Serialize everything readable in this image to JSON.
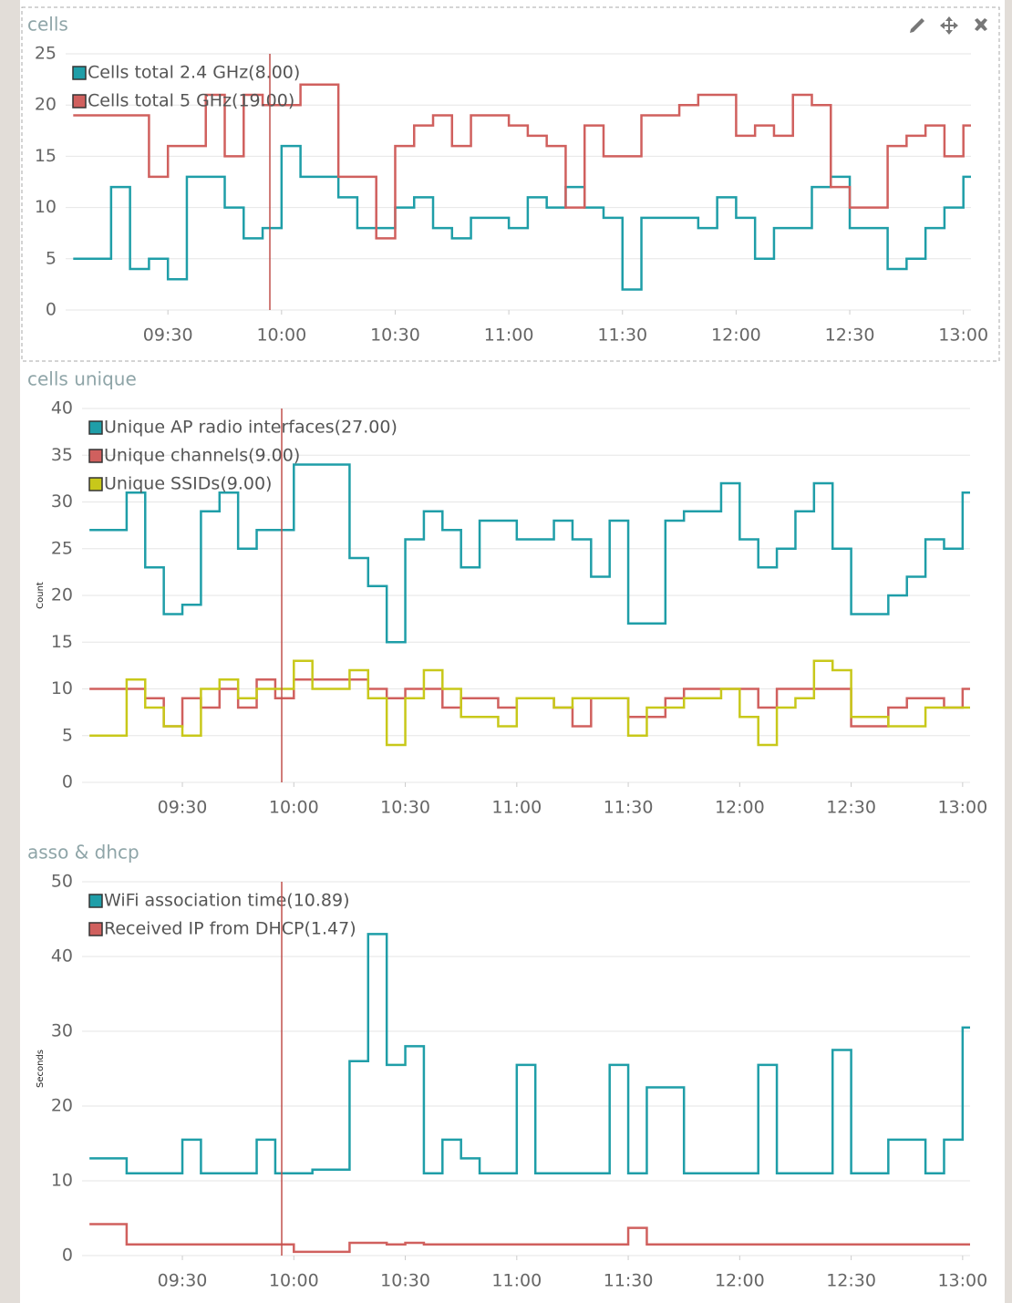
{
  "chart_data": [
    {
      "type": "line",
      "title": "cells",
      "x": [
        "09:05",
        "09:10",
        "09:15",
        "09:20",
        "09:25",
        "09:30",
        "09:35",
        "09:40",
        "09:45",
        "09:50",
        "09:55",
        "10:00",
        "10:05",
        "10:10",
        "10:15",
        "10:20",
        "10:25",
        "10:30",
        "10:35",
        "10:40",
        "10:45",
        "10:50",
        "10:55",
        "11:00",
        "11:05",
        "11:10",
        "11:15",
        "11:20",
        "11:25",
        "11:30",
        "11:35",
        "11:40",
        "11:45",
        "11:50",
        "11:55",
        "12:00",
        "12:05",
        "12:10",
        "12:15",
        "12:20",
        "12:25",
        "12:30",
        "12:35",
        "12:40",
        "12:45",
        "12:50",
        "12:55",
        "13:00"
      ],
      "series": [
        {
          "name": "Cells total 2.4 GHz(8.00)",
          "color": "#1f9ea8",
          "values": [
            5,
            5,
            12,
            4,
            5,
            3,
            13,
            13,
            10,
            7,
            8,
            16,
            13,
            13,
            11,
            8,
            8,
            10,
            11,
            8,
            7,
            9,
            9,
            8,
            11,
            10,
            12,
            10,
            9,
            2,
            9,
            9,
            9,
            8,
            11,
            9,
            5,
            8,
            8,
            12,
            13,
            8,
            8,
            4,
            5,
            8,
            10,
            13
          ]
        },
        {
          "name": "Cells total 5 GHz(19.00)",
          "color": "#d0605e",
          "values": [
            19,
            19,
            19,
            19,
            13,
            16,
            16,
            21,
            15,
            21,
            20,
            20,
            22,
            22,
            13,
            13,
            7,
            16,
            18,
            19,
            16,
            19,
            19,
            18,
            17,
            16,
            10,
            18,
            15,
            15,
            19,
            19,
            20,
            21,
            21,
            17,
            18,
            17,
            21,
            20,
            12,
            10,
            10,
            16,
            17,
            18,
            15,
            18
          ]
        }
      ],
      "xlim": [
        "09:03",
        "13:02"
      ],
      "xticks": [
        "09:30",
        "10:00",
        "10:30",
        "11:00",
        "11:30",
        "12:00",
        "12:30",
        "13:00"
      ],
      "ylim": [
        0,
        25
      ],
      "yticks": [
        0,
        5,
        10,
        15,
        20,
        25
      ],
      "grid": true,
      "step": true,
      "legend": "top-left"
    },
    {
      "type": "line",
      "title": "cells unique",
      "ylabel": "Count",
      "x": [
        "09:05",
        "09:10",
        "09:15",
        "09:20",
        "09:25",
        "09:30",
        "09:35",
        "09:40",
        "09:45",
        "09:50",
        "09:55",
        "10:00",
        "10:05",
        "10:10",
        "10:15",
        "10:20",
        "10:25",
        "10:30",
        "10:35",
        "10:40",
        "10:45",
        "10:50",
        "10:55",
        "11:00",
        "11:05",
        "11:10",
        "11:15",
        "11:20",
        "11:25",
        "11:30",
        "11:35",
        "11:40",
        "11:45",
        "11:50",
        "11:55",
        "12:00",
        "12:05",
        "12:10",
        "12:15",
        "12:20",
        "12:25",
        "12:30",
        "12:35",
        "12:40",
        "12:45",
        "12:50",
        "12:55",
        "13:00"
      ],
      "series": [
        {
          "name": "Unique AP radio interfaces(27.00)",
          "color": "#1f9ea8",
          "values": [
            27,
            27,
            31,
            23,
            18,
            19,
            29,
            31,
            25,
            27,
            27,
            34,
            34,
            34,
            24,
            21,
            15,
            26,
            29,
            27,
            23,
            28,
            28,
            26,
            26,
            28,
            26,
            22,
            28,
            17,
            17,
            28,
            29,
            29,
            32,
            26,
            23,
            25,
            29,
            32,
            25,
            18,
            18,
            20,
            22,
            26,
            25,
            31
          ]
        },
        {
          "name": "Unique channels(9.00)",
          "color": "#d0605e",
          "values": [
            10,
            10,
            10,
            9,
            6,
            9,
            8,
            10,
            8,
            11,
            9,
            11,
            11,
            11,
            11,
            10,
            9,
            10,
            10,
            8,
            9,
            9,
            8,
            9,
            9,
            8,
            6,
            9,
            9,
            7,
            7,
            9,
            10,
            10,
            10,
            10,
            8,
            10,
            10,
            10,
            10,
            6,
            6,
            8,
            9,
            9,
            8,
            10
          ]
        },
        {
          "name": "Unique SSIDs(9.00)",
          "color": "#c8c81a",
          "values": [
            5,
            5,
            11,
            8,
            6,
            5,
            10,
            11,
            9,
            10,
            10,
            13,
            10,
            10,
            12,
            9,
            4,
            9,
            12,
            10,
            7,
            7,
            6,
            9,
            9,
            8,
            9,
            9,
            9,
            5,
            8,
            8,
            9,
            9,
            10,
            7,
            4,
            8,
            9,
            13,
            12,
            7,
            7,
            6,
            6,
            8,
            8,
            8
          ]
        }
      ],
      "xlim": [
        "09:03",
        "13:02"
      ],
      "xticks": [
        "09:30",
        "10:00",
        "10:30",
        "11:00",
        "11:30",
        "12:00",
        "12:30",
        "13:00"
      ],
      "ylim": [
        0,
        40
      ],
      "yticks": [
        0,
        5,
        10,
        15,
        20,
        25,
        30,
        35,
        40
      ],
      "grid": true,
      "step": true,
      "legend": "top-left"
    },
    {
      "type": "line",
      "title": "asso & dhcp",
      "ylabel": "Seconds",
      "x": [
        "09:05",
        "09:10",
        "09:15",
        "09:20",
        "09:25",
        "09:30",
        "09:35",
        "09:40",
        "09:45",
        "09:50",
        "09:55",
        "10:00",
        "10:05",
        "10:10",
        "10:15",
        "10:20",
        "10:25",
        "10:30",
        "10:35",
        "10:40",
        "10:45",
        "10:50",
        "10:55",
        "11:00",
        "11:05",
        "11:10",
        "11:15",
        "11:20",
        "11:25",
        "11:30",
        "11:35",
        "11:40",
        "11:45",
        "11:50",
        "11:55",
        "12:00",
        "12:05",
        "12:10",
        "12:15",
        "12:20",
        "12:25",
        "12:30",
        "12:35",
        "12:40",
        "12:45",
        "12:50",
        "12:55",
        "13:00"
      ],
      "series": [
        {
          "name": "WiFi association time(10.89)",
          "color": "#1f9ea8",
          "values": [
            13,
            13,
            11,
            11,
            11,
            15.5,
            11,
            11,
            11,
            15.5,
            11,
            11,
            11.5,
            11.5,
            26,
            43,
            25.5,
            28,
            11,
            15.5,
            13,
            11,
            11,
            25.5,
            11,
            11,
            11,
            11,
            25.5,
            11,
            22.5,
            22.5,
            11,
            11,
            11,
            11,
            25.5,
            11,
            11,
            11,
            27.5,
            11,
            11,
            15.5,
            15.5,
            11,
            15.5,
            30.5
          ]
        },
        {
          "name": "Received IP from DHCP(1.47)",
          "color": "#d0605e",
          "values": [
            4.2,
            4.2,
            1.5,
            1.5,
            1.5,
            1.5,
            1.5,
            1.5,
            1.5,
            1.5,
            1.5,
            0.5,
            0.5,
            0.5,
            1.7,
            1.7,
            1.5,
            1.7,
            1.5,
            1.5,
            1.5,
            1.5,
            1.5,
            1.5,
            1.5,
            1.5,
            1.5,
            1.5,
            1.5,
            3.7,
            1.5,
            1.5,
            1.5,
            1.5,
            1.5,
            1.5,
            1.5,
            1.5,
            1.5,
            1.5,
            1.5,
            1.5,
            1.5,
            1.5,
            1.5,
            1.5,
            1.5,
            1.5
          ]
        }
      ],
      "xlim": [
        "09:03",
        "13:02"
      ],
      "xticks": [
        "09:30",
        "10:00",
        "10:30",
        "11:00",
        "11:30",
        "12:00",
        "12:30",
        "13:00"
      ],
      "ylim": [
        0,
        50
      ],
      "yticks": [
        0,
        10,
        20,
        30,
        40,
        50
      ],
      "grid": true,
      "step": true,
      "legend": "top-left"
    }
  ]
}
